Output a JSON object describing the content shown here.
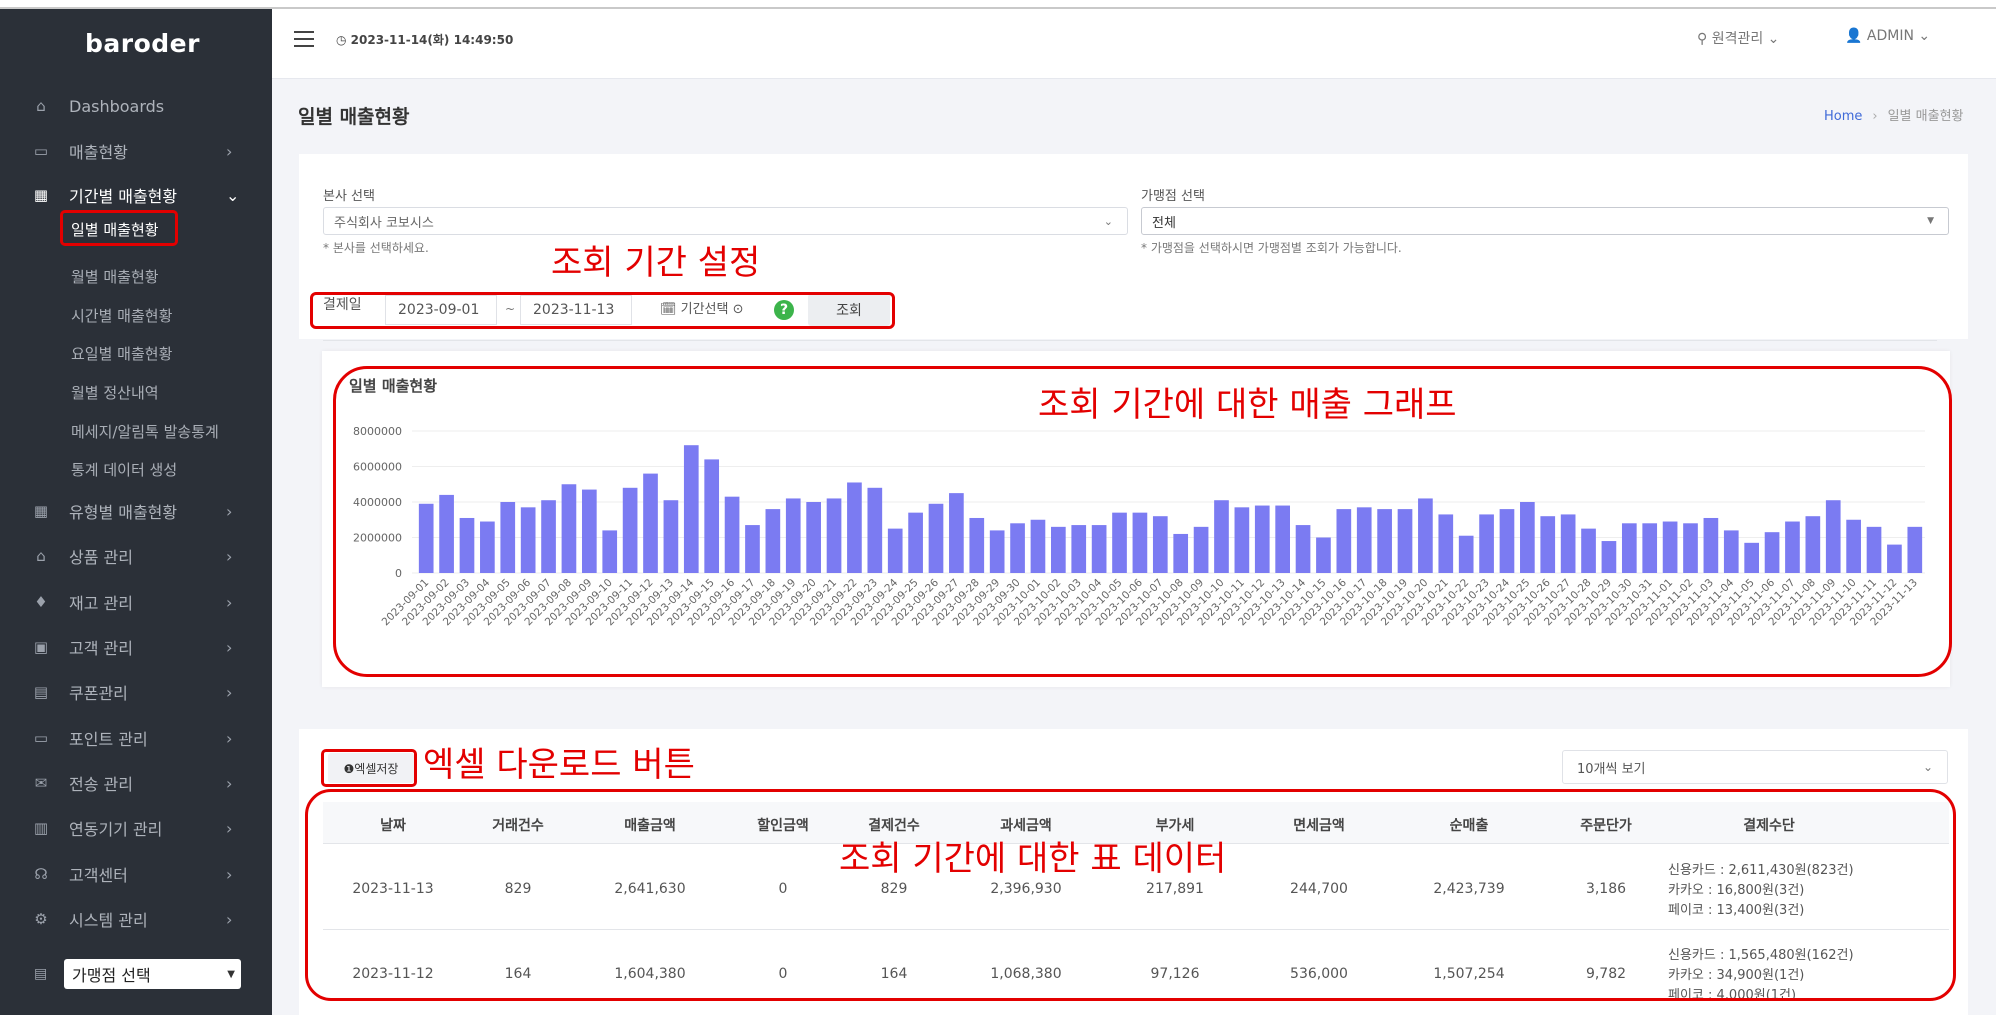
{
  "app": {
    "logo": "baroder"
  },
  "header": {
    "datetime": "◷ 2023-11-14(화) 14:49:50",
    "remote_label": "⚲ 원격관리 ⌄",
    "admin_label": "ADMIN ⌄"
  },
  "sidebar": {
    "items": [
      {
        "label": "Dashboards",
        "icon": "home-icon"
      },
      {
        "label": "매출현황",
        "icon": "wallet-icon"
      },
      {
        "label": "기간별 매출현황",
        "icon": "bar-chart-icon"
      },
      {
        "label": "유형별 매출현황",
        "icon": "bar-chart-icon"
      },
      {
        "label": "상품 관리",
        "icon": "store-icon"
      },
      {
        "label": "재고 관리",
        "icon": "drops-icon"
      },
      {
        "label": "고객 관리",
        "icon": "user-card-icon"
      },
      {
        "label": "쿠폰관리",
        "icon": "ticket-icon"
      },
      {
        "label": "포인트 관리",
        "icon": "wallet-icon"
      },
      {
        "label": "전송 관리",
        "icon": "mail-icon"
      },
      {
        "label": "연동기기 관리",
        "icon": "device-icon"
      },
      {
        "label": "고객센터",
        "icon": "headset-icon"
      },
      {
        "label": "시스템 관리",
        "icon": "gear-icon"
      }
    ],
    "subitems": [
      "일별 매출현황",
      "월별 매출현황",
      "시간별 매출현황",
      "요일별 매출현황",
      "월별 정산내역",
      "메세지/알림톡 발송통계",
      "통계 데이터 생성"
    ],
    "store_select": "가맹점 선택"
  },
  "page": {
    "title": "일별 매출현황",
    "breadcrumb_home": "Home",
    "breadcrumb_current": "일별 매출현황"
  },
  "filters": {
    "hq_label": "본사 선택",
    "hq_value": "주식회사 코보시스",
    "hq_help": "* 본사를 선택하세요.",
    "store_label": "가맹점 선택",
    "store_value": "전체",
    "store_help": "* 가맹점을 선택하시면 가맹점별 조회가 가능합니다.",
    "date_label": "결제일",
    "date_from": "2023-09-01",
    "date_sep": "~",
    "date_to": "2023-11-13",
    "period_button": "🗓 기간선택 ⊙",
    "help_button": "?",
    "search_button": "조회"
  },
  "chart_data": {
    "type": "bar",
    "title": "일별 매출현황",
    "color": "#7b7bf2",
    "ylim": [
      0,
      8000000
    ],
    "yticks": [
      0,
      2000000,
      4000000,
      6000000,
      8000000
    ],
    "ytick_labels": [
      "0",
      "2000000",
      "4000000",
      "6000000",
      "8000000"
    ],
    "categories": [
      "2023-09-01",
      "2023-09-02",
      "2023-09-03",
      "2023-09-04",
      "2023-09-05",
      "2023-09-06",
      "2023-09-07",
      "2023-09-08",
      "2023-09-09",
      "2023-09-10",
      "2023-09-11",
      "2023-09-12",
      "2023-09-13",
      "2023-09-14",
      "2023-09-15",
      "2023-09-16",
      "2023-09-17",
      "2023-09-18",
      "2023-09-19",
      "2023-09-20",
      "2023-09-21",
      "2023-09-22",
      "2023-09-23",
      "2023-09-24",
      "2023-09-25",
      "2023-09-26",
      "2023-09-27",
      "2023-09-28",
      "2023-09-29",
      "2023-09-30",
      "2023-10-01",
      "2023-10-02",
      "2023-10-03",
      "2023-10-04",
      "2023-10-05",
      "2023-10-06",
      "2023-10-07",
      "2023-10-08",
      "2023-10-09",
      "2023-10-10",
      "2023-10-11",
      "2023-10-12",
      "2023-10-13",
      "2023-10-14",
      "2023-10-15",
      "2023-10-16",
      "2023-10-17",
      "2023-10-18",
      "2023-10-19",
      "2023-10-20",
      "2023-10-21",
      "2023-10-22",
      "2023-10-23",
      "2023-10-24",
      "2023-10-25",
      "2023-10-26",
      "2023-10-27",
      "2023-10-28",
      "2023-10-29",
      "2023-10-30",
      "2023-10-31",
      "2023-11-01",
      "2023-11-02",
      "2023-11-03",
      "2023-11-04",
      "2023-11-05",
      "2023-11-06",
      "2023-11-07",
      "2023-11-08",
      "2023-11-09",
      "2023-11-10",
      "2023-11-11",
      "2023-11-12",
      "2023-11-13"
    ],
    "values": [
      3900000,
      4400000,
      3100000,
      2900000,
      4000000,
      3700000,
      4100000,
      5000000,
      4700000,
      2400000,
      4800000,
      5600000,
      4100000,
      7200000,
      6400000,
      4300000,
      2700000,
      3600000,
      4200000,
      4000000,
      4200000,
      5100000,
      4800000,
      2500000,
      3400000,
      3900000,
      4500000,
      3100000,
      2400000,
      2800000,
      3000000,
      2600000,
      2700000,
      2700000,
      3400000,
      3400000,
      3200000,
      2200000,
      2600000,
      4100000,
      3700000,
      3800000,
      3800000,
      2700000,
      2000000,
      3600000,
      3700000,
      3600000,
      3600000,
      4200000,
      3300000,
      2100000,
      3300000,
      3600000,
      4000000,
      3200000,
      3300000,
      2500000,
      1800000,
      2800000,
      2800000,
      2900000,
      2800000,
      3100000,
      2400000,
      1700000,
      2300000,
      2900000,
      3200000,
      4100000,
      3000000,
      2600000,
      1600000,
      2600000
    ]
  },
  "table": {
    "excel_button": "❶엑셀저장",
    "page_size": "10개씩 보기",
    "headers": [
      "날짜",
      "거래건수",
      "매출금액",
      "할인금액",
      "결제건수",
      "과세금액",
      "부가세",
      "면세금액",
      "순매출",
      "주문단가",
      "결제수단"
    ],
    "rows": [
      {
        "cells": [
          "2023-11-13",
          "829",
          "2,641,630",
          "0",
          "829",
          "2,396,930",
          "217,891",
          "244,700",
          "2,423,739",
          "3,186"
        ],
        "payments": [
          "신용카드 : 2,611,430원(823건)",
          "카카오 : 16,800원(3건)",
          "페이코 : 13,400원(3건)"
        ]
      },
      {
        "cells": [
          "2023-11-12",
          "164",
          "1,604,380",
          "0",
          "164",
          "1,068,380",
          "97,126",
          "536,000",
          "1,507,254",
          "9,782"
        ],
        "payments": [
          "신용카드 : 1,565,480원(162건)",
          "카카오 : 34,900원(1건)",
          "페이코 : 4,000원(1건)"
        ]
      }
    ]
  },
  "annotations": {
    "period": "조회 기간 설정",
    "chart": "조회 기간에 대한 매출 그래프",
    "excel": "엑셀 다운로드 버튼",
    "table": "조회 기간에 대한 표 데이터",
    "color": "#e30000"
  }
}
